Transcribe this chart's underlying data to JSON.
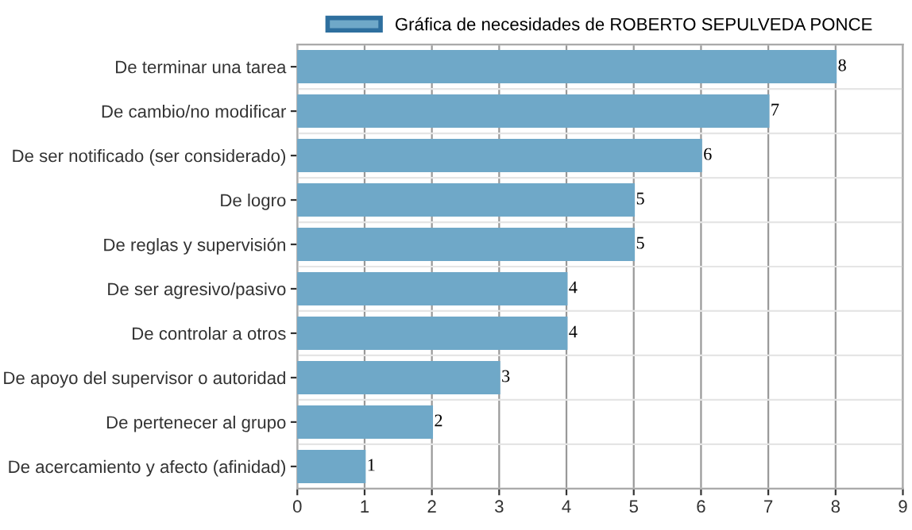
{
  "chart_data": {
    "type": "bar",
    "orientation": "horizontal",
    "categories": [
      "De terminar una tarea",
      "De cambio/no modificar",
      "De ser notificado (ser considerado)",
      "De logro",
      "De reglas y supervisión",
      "De ser agresivo/pasivo",
      "De controlar a otros",
      "De apoyo del supervisor o autoridad",
      "De pertenecer al grupo",
      "De acercamiento y afecto (afinidad)"
    ],
    "series": [
      {
        "name": "Gráfica de necesidades de ROBERTO SEPULVEDA PONCE",
        "color": "#6fa8c8",
        "values": [
          8,
          7,
          6,
          5,
          5,
          4,
          4,
          3,
          2,
          1
        ]
      }
    ],
    "xlim": [
      0,
      9
    ],
    "xticks": [
      0,
      1,
      2,
      3,
      4,
      5,
      6,
      7,
      8,
      9
    ],
    "grid": true,
    "legend": "top",
    "data_labels": true
  }
}
